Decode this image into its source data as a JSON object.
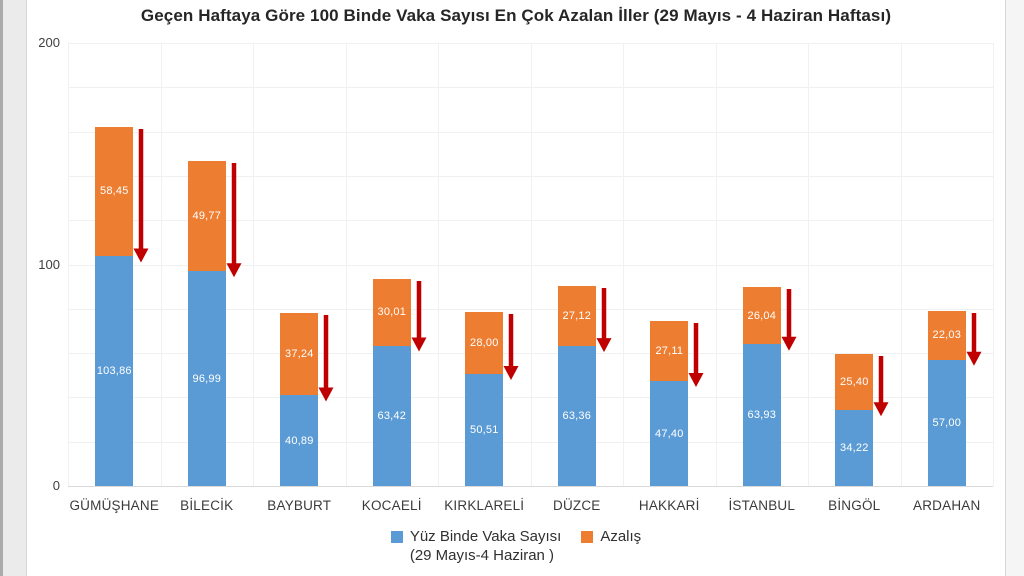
{
  "chart_data": {
    "type": "bar",
    "stacked": true,
    "title": "Geçen Haftaya Göre 100 Binde Vaka Sayısı En Çok Azalan İller (29 Mayıs - 4 Haziran Haftası)",
    "categories": [
      "GÜMÜŞHANE",
      "BİLECİK",
      "BAYBURT",
      "KOCAELİ",
      "KIRKLARELİ",
      "DÜZCE",
      "HAKKARİ",
      "İSTANBUL",
      "BİNGÖL",
      "ARDAHAN"
    ],
    "series": [
      {
        "name": "Yüz Binde Vaka Sayısı (29 Mayıs-4 Haziran )",
        "color": "#5B9BD5",
        "values": [
          103.86,
          96.99,
          40.89,
          63.42,
          50.51,
          63.36,
          47.4,
          63.93,
          34.22,
          57.0
        ]
      },
      {
        "name": "Azalış",
        "color": "#ED7D31",
        "values": [
          58.45,
          49.77,
          37.24,
          30.01,
          28.0,
          27.12,
          27.11,
          26.04,
          25.4,
          22.03
        ]
      }
    ],
    "value_label_decimals": 2,
    "decimal_separator": ",",
    "ylim": [
      0,
      200
    ],
    "yticks": [
      0,
      100,
      200
    ],
    "grid_step": 20,
    "grid": true,
    "arrow_color": "#C00000",
    "legend_position": "bottom",
    "legend": {
      "items": [
        {
          "label": "Yüz Binde Vaka Sayısı",
          "sublabel": "(29 Mayıs-4 Haziran )",
          "color": "#5B9BD5"
        },
        {
          "label": "Azalış",
          "sublabel": "",
          "color": "#ED7D31"
        }
      ]
    }
  }
}
